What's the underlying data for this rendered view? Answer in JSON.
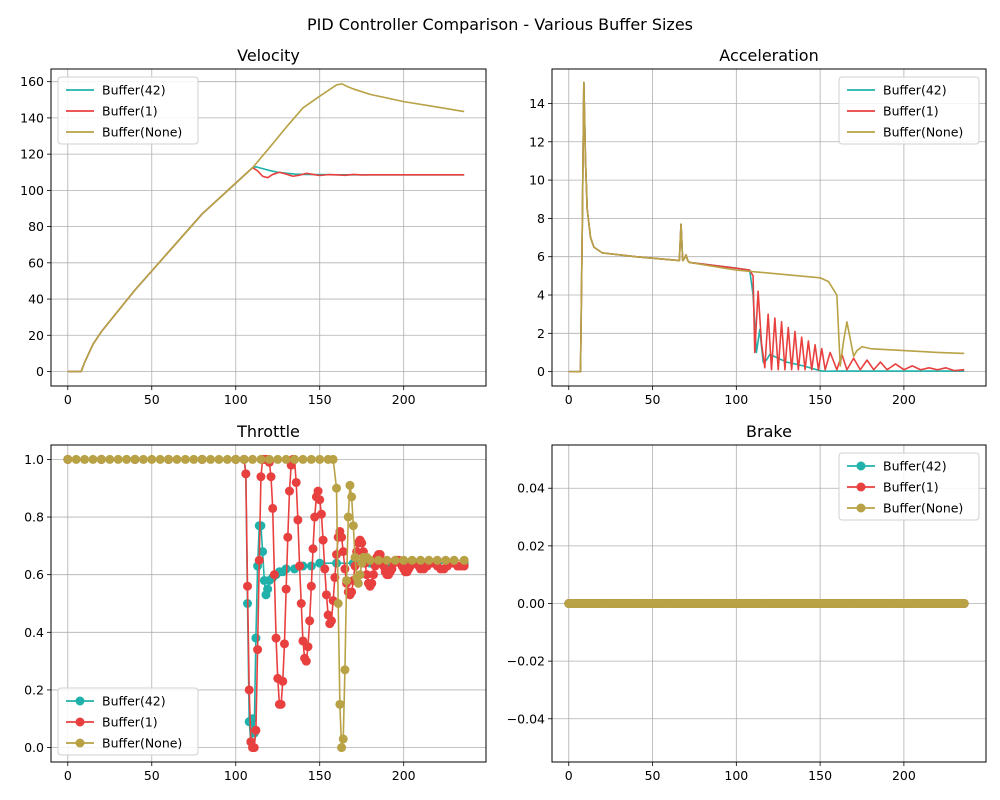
{
  "figure": {
    "suptitle": "PID Controller Comparison - Various Buffer Sizes"
  },
  "colors": {
    "buffer42": "#20b2aa",
    "buffer1": "#e8403f",
    "bufferNone": "#b8a245",
    "grid": "#b0b0b0"
  },
  "chart_data": [
    {
      "id": "velocity",
      "type": "line",
      "title": "Velocity",
      "xlim": [
        -10,
        249
      ],
      "ylim": [
        -8,
        167
      ],
      "xticks": [
        0,
        50,
        100,
        150,
        200
      ],
      "yticks": [
        0,
        20,
        40,
        60,
        80,
        100,
        120,
        140,
        160
      ],
      "grid": true,
      "legend": "upper-left",
      "markers": false,
      "series": [
        {
          "name": "Buffer(42)",
          "color": "#20b2aa",
          "x": [
            0,
            8,
            10,
            15,
            20,
            40,
            60,
            80,
            100,
            110,
            112,
            116,
            120,
            125,
            130,
            135,
            140,
            150,
            160,
            170,
            180,
            190,
            200,
            210,
            220,
            236
          ],
          "y": [
            0,
            0,
            5,
            15,
            22,
            45,
            66,
            87,
            104,
            112.5,
            113,
            112,
            111,
            110,
            109.5,
            109,
            108.8,
            108.7,
            108.6,
            108.6,
            108.6,
            108.6,
            108.6,
            108.6,
            108.6,
            108.6
          ]
        },
        {
          "name": "Buffer(1)",
          "color": "#e8403f",
          "x": [
            0,
            8,
            10,
            15,
            20,
            40,
            60,
            80,
            100,
            110,
            113,
            116,
            119,
            122,
            126,
            130,
            134,
            138,
            142,
            146,
            150,
            155,
            160,
            165,
            170,
            175,
            180,
            190,
            200,
            210,
            220,
            236
          ],
          "y": [
            0,
            0,
            5,
            15,
            22,
            45,
            66,
            87,
            104,
            112.5,
            110.8,
            107.8,
            107,
            108.8,
            110,
            109,
            107.8,
            108.4,
            109.4,
            108.8,
            108.2,
            108.7,
            108.6,
            108.3,
            108.8,
            108.5,
            108.6,
            108.6,
            108.6,
            108.6,
            108.6,
            108.6
          ]
        },
        {
          "name": "Buffer(None)",
          "color": "#b8a245",
          "x": [
            0,
            8,
            10,
            15,
            20,
            40,
            60,
            80,
            100,
            110,
            120,
            130,
            140,
            150,
            160,
            163,
            164,
            166,
            170,
            180,
            200,
            220,
            236
          ],
          "y": [
            0,
            0,
            5,
            15,
            22,
            45,
            66,
            87,
            104,
            112.5,
            123.5,
            134.8,
            145.5,
            152,
            158.2,
            158.8,
            158.5,
            157.5,
            156,
            153,
            149,
            146,
            143.5
          ]
        }
      ]
    },
    {
      "id": "acceleration",
      "type": "line",
      "title": "Acceleration",
      "xlim": [
        -10,
        249
      ],
      "ylim": [
        -0.75,
        15.8
      ],
      "xticks": [
        0,
        50,
        100,
        150,
        200
      ],
      "yticks": [
        0,
        2,
        4,
        6,
        8,
        10,
        12,
        14
      ],
      "grid": true,
      "legend": "upper-right",
      "markers": false,
      "series": [
        {
          "name": "Buffer(42)",
          "color": "#20b2aa",
          "x": [
            0,
            7,
            8,
            9,
            10,
            11,
            13,
            15,
            20,
            40,
            66,
            67,
            68,
            69,
            70,
            71,
            72,
            100,
            108,
            110,
            112,
            114,
            116,
            118,
            120,
            125,
            130,
            140,
            150,
            153,
            160,
            236
          ],
          "y": [
            0,
            0,
            7,
            15.1,
            11,
            8.5,
            7,
            6.5,
            6.2,
            6,
            5.8,
            7.7,
            5.8,
            5.9,
            6.1,
            5.8,
            5.7,
            5.4,
            5.3,
            4,
            1,
            2.2,
            0.5,
            0.6,
            0.9,
            0.7,
            0.5,
            0.3,
            0.05,
            0.02,
            0.03,
            0.03
          ]
        },
        {
          "name": "Buffer(1)",
          "color": "#e8403f",
          "x": [
            0,
            7,
            8,
            9,
            10,
            11,
            13,
            15,
            20,
            40,
            66,
            67,
            68,
            69,
            70,
            71,
            72,
            100,
            108,
            110,
            111,
            113,
            115,
            117,
            119,
            121,
            123,
            125,
            127,
            129,
            131,
            133,
            135,
            137,
            139,
            141,
            143,
            145,
            147,
            149,
            151,
            153,
            156,
            160,
            163,
            166,
            170,
            174,
            178,
            182,
            186,
            190,
            195,
            200,
            205,
            210,
            215,
            220,
            225,
            230,
            236
          ],
          "y": [
            0,
            0,
            7,
            15.1,
            11,
            8.5,
            7,
            6.5,
            6.2,
            6,
            5.8,
            7.7,
            5.8,
            5.9,
            6.1,
            5.8,
            5.7,
            5.4,
            5.3,
            5,
            1,
            4.2,
            1.5,
            0.2,
            3,
            0.1,
            2.8,
            0.1,
            2.6,
            0.1,
            2.3,
            0.1,
            2.1,
            0.1,
            1.8,
            0.1,
            1.6,
            0.1,
            1.4,
            0.1,
            1.2,
            0.1,
            1,
            0.1,
            0.9,
            0.1,
            0.7,
            0.1,
            0.6,
            0.1,
            0.5,
            0.1,
            0.4,
            0.1,
            0.3,
            0.1,
            0.2,
            0.1,
            0.2,
            0.05,
            0.1
          ]
        },
        {
          "name": "Buffer(None)",
          "color": "#b8a245",
          "x": [
            0,
            7,
            8,
            9,
            10,
            11,
            13,
            15,
            20,
            40,
            66,
            67,
            68,
            69,
            70,
            71,
            72,
            100,
            150,
            155,
            160,
            162,
            164,
            166,
            168,
            170,
            172,
            175,
            180,
            200,
            220,
            236
          ],
          "y": [
            0,
            0,
            7,
            15.1,
            11,
            8.5,
            7,
            6.5,
            6.2,
            6,
            5.8,
            7.7,
            5.8,
            5.9,
            6.1,
            5.8,
            5.7,
            5.3,
            4.9,
            4.7,
            4,
            0.3,
            1.6,
            2.6,
            1.7,
            0.8,
            1.1,
            1.3,
            1.2,
            1.1,
            1,
            0.95
          ]
        }
      ]
    },
    {
      "id": "throttle",
      "type": "line",
      "title": "Throttle",
      "xlim": [
        -10,
        249
      ],
      "ylim": [
        -0.05,
        1.05
      ],
      "xticks": [
        0,
        50,
        100,
        150,
        200
      ],
      "yticks": [
        0.0,
        0.2,
        0.4,
        0.6,
        0.8,
        1.0
      ],
      "grid": true,
      "legend": "lower-left",
      "markers": true,
      "series": [
        {
          "name": "Buffer(42)",
          "color": "#20b2aa",
          "x": [
            0,
            20,
            40,
            60,
            80,
            100,
            105,
            106,
            107,
            108,
            109,
            110,
            111,
            112,
            113,
            114,
            115,
            116,
            117,
            118,
            119,
            120,
            122,
            124,
            126,
            128,
            130,
            135,
            140,
            145,
            150,
            160,
            170,
            180,
            190,
            200,
            210,
            220,
            230,
            236
          ],
          "y": [
            1,
            1,
            1,
            1,
            1,
            1,
            1,
            0.95,
            0.5,
            0.09,
            0.02,
            0.1,
            0.05,
            0.38,
            0.63,
            0.77,
            0.77,
            0.68,
            0.58,
            0.53,
            0.55,
            0.58,
            0.59,
            0.6,
            0.61,
            0.61,
            0.62,
            0.62,
            0.63,
            0.63,
            0.64,
            0.64,
            0.64,
            0.64,
            0.64,
            0.64,
            0.64,
            0.64,
            0.64,
            0.64
          ]
        },
        {
          "name": "Buffer(1)",
          "color": "#e8403f",
          "x": [
            0,
            20,
            40,
            60,
            80,
            100,
            105,
            106,
            107,
            108,
            109,
            110,
            111,
            112,
            113,
            114,
            115,
            116,
            117,
            118,
            119,
            120,
            121,
            122,
            123,
            124,
            125,
            126,
            127,
            128,
            129,
            130,
            131,
            132,
            133,
            134,
            135,
            136,
            137,
            138,
            139,
            140,
            141,
            142,
            143,
            144,
            145,
            146,
            147,
            148,
            149,
            150,
            151,
            152,
            153,
            154,
            155,
            156,
            157,
            158,
            159,
            160,
            161,
            162,
            163,
            164,
            165,
            166,
            167,
            168,
            169,
            170,
            171,
            172,
            173,
            174,
            175,
            176,
            177,
            178,
            179,
            180,
            181,
            182,
            183,
            184,
            185,
            186,
            187,
            188,
            189,
            190,
            191,
            192,
            193,
            194,
            195,
            196,
            197,
            198,
            199,
            200,
            201,
            202,
            203,
            204,
            205,
            206,
            207,
            208,
            209,
            210,
            212,
            214,
            216,
            218,
            220,
            222,
            224,
            226,
            228,
            230,
            232,
            234,
            236
          ],
          "y": [
            1,
            1,
            1,
            1,
            1,
            1,
            1,
            0.95,
            0.56,
            0.2,
            0.02,
            0.0,
            0.0,
            0.06,
            0.34,
            0.65,
            0.94,
            1.0,
            1.0,
            1.0,
            1.0,
            0.99,
            0.94,
            0.83,
            0.6,
            0.38,
            0.24,
            0.15,
            0.15,
            0.23,
            0.36,
            0.55,
            0.73,
            0.89,
            0.98,
            1.0,
            1.0,
            0.92,
            0.79,
            0.63,
            0.5,
            0.37,
            0.31,
            0.3,
            0.35,
            0.44,
            0.56,
            0.69,
            0.8,
            0.87,
            0.89,
            0.86,
            0.81,
            0.72,
            0.62,
            0.53,
            0.46,
            0.43,
            0.44,
            0.51,
            0.59,
            0.67,
            0.73,
            0.75,
            0.73,
            0.68,
            0.62,
            0.57,
            0.54,
            0.53,
            0.54,
            0.58,
            0.63,
            0.68,
            0.71,
            0.72,
            0.71,
            0.68,
            0.64,
            0.6,
            0.57,
            0.56,
            0.57,
            0.6,
            0.63,
            0.66,
            0.67,
            0.67,
            0.65,
            0.63,
            0.61,
            0.6,
            0.6,
            0.61,
            0.62,
            0.64,
            0.65,
            0.65,
            0.65,
            0.64,
            0.63,
            0.62,
            0.61,
            0.61,
            0.62,
            0.63,
            0.64,
            0.64,
            0.64,
            0.64,
            0.63,
            0.62,
            0.62,
            0.63,
            0.64,
            0.64,
            0.63,
            0.62,
            0.62,
            0.63,
            0.64,
            0.64,
            0.63,
            0.63,
            0.63
          ]
        },
        {
          "name": "Buffer(None)",
          "color": "#b8a245",
          "x": [
            0,
            5,
            10,
            15,
            20,
            25,
            30,
            35,
            40,
            45,
            50,
            55,
            60,
            65,
            70,
            75,
            80,
            85,
            90,
            95,
            100,
            105,
            110,
            115,
            120,
            125,
            130,
            135,
            140,
            145,
            150,
            155,
            158,
            160,
            161,
            162,
            163,
            164,
            165,
            166,
            167,
            168,
            169,
            170,
            171,
            172,
            173,
            174,
            175,
            176,
            178,
            180,
            185,
            190,
            195,
            200,
            205,
            210,
            215,
            220,
            225,
            230,
            236
          ],
          "y": [
            1,
            1,
            1,
            1,
            1,
            1,
            1,
            1,
            1,
            1,
            1,
            1,
            1,
            1,
            1,
            1,
            1,
            1,
            1,
            1,
            1,
            1,
            1,
            1,
            1,
            1,
            1,
            1,
            1,
            1,
            1,
            1,
            1,
            0.9,
            0.5,
            0.15,
            0.0,
            0.03,
            0.27,
            0.58,
            0.8,
            0.91,
            0.87,
            0.77,
            0.66,
            0.59,
            0.57,
            0.6,
            0.64,
            0.66,
            0.66,
            0.65,
            0.65,
            0.65,
            0.65,
            0.65,
            0.65,
            0.65,
            0.65,
            0.65,
            0.65,
            0.65,
            0.65
          ]
        }
      ]
    },
    {
      "id": "brake",
      "type": "line",
      "title": "Brake",
      "xlim": [
        -10,
        249
      ],
      "ylim": [
        -0.055,
        0.055
      ],
      "xticks": [
        0,
        50,
        100,
        150,
        200
      ],
      "yticks": [
        -0.04,
        -0.02,
        0.0,
        0.02,
        0.04
      ],
      "grid": true,
      "legend": "upper-right",
      "markers": true,
      "series": [
        {
          "name": "Buffer(42)",
          "color": "#20b2aa",
          "x": [
            0,
            236
          ],
          "y": [
            0,
            0
          ]
        },
        {
          "name": "Buffer(1)",
          "color": "#e8403f",
          "x": [
            0,
            236
          ],
          "y": [
            0,
            0
          ]
        },
        {
          "name": "Buffer(None)",
          "color": "#b8a245",
          "x": [
            0,
            236
          ],
          "y": [
            0,
            0
          ]
        }
      ]
    }
  ]
}
